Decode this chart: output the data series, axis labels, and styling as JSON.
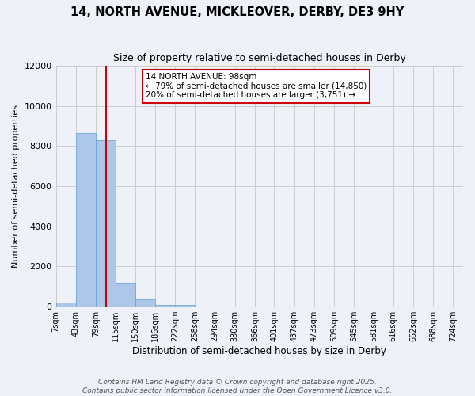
{
  "title_line1": "14, NORTH AVENUE, MICKLEOVER, DERBY, DE3 9HY",
  "title_line2": "Size of property relative to semi-detached houses in Derby",
  "xlabel": "Distribution of semi-detached houses by size in Derby",
  "ylabel": "Number of semi-detached properties",
  "bin_edges": [
    7,
    43,
    79,
    115,
    150,
    186,
    222,
    258,
    294,
    330,
    366,
    401,
    437,
    473,
    509,
    545,
    581,
    616,
    652,
    688,
    724
  ],
  "bar_heights": [
    200,
    8650,
    8300,
    1200,
    350,
    100,
    80,
    0,
    0,
    0,
    0,
    0,
    0,
    0,
    0,
    0,
    0,
    0,
    0,
    0
  ],
  "bar_color": "#aec6e8",
  "bar_edge_color": "#5a9fd4",
  "property_size": 98,
  "red_line_color": "#cc0000",
  "annotation_text": "14 NORTH AVENUE: 98sqm\n← 79% of semi-detached houses are smaller (14,850)\n20% of semi-detached houses are larger (3,751) →",
  "annotation_box_color": "#ffffff",
  "annotation_box_edge_color": "#cc0000",
  "ylim": [
    0,
    12000
  ],
  "yticks": [
    0,
    2000,
    4000,
    6000,
    8000,
    10000,
    12000
  ],
  "grid_color": "#cccccc",
  "background_color": "#eef2f8",
  "footer_line1": "Contains HM Land Registry data © Crown copyright and database right 2025.",
  "footer_line2": "Contains public sector information licensed under the Open Government Licence v3.0.",
  "title_fontsize": 10.5,
  "subtitle_fontsize": 9,
  "annotation_fontsize": 7.5,
  "footer_fontsize": 6.5,
  "ylabel_fontsize": 8,
  "xlabel_fontsize": 8.5
}
